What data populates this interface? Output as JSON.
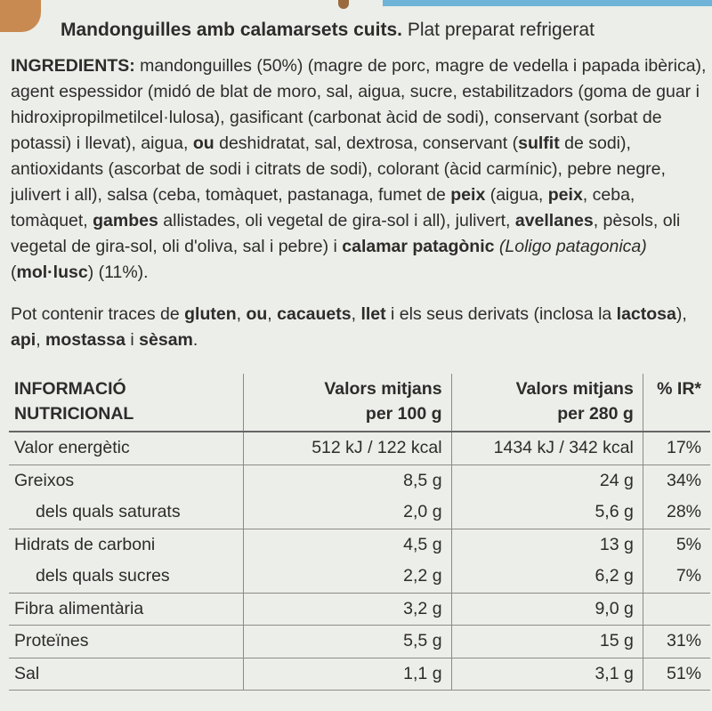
{
  "title": {
    "product": "Mandonguilles amb calamarsets cuits.",
    "subtitle": "Plat preparat refrigerat"
  },
  "ingredients": {
    "label": "INGREDIENTS:",
    "segments": [
      {
        "t": " mandonguilles (50%) (magre de porc, magre de vedella i papada ibèrica), agent espessidor (midó de blat de moro, sal, aigua, sucre, estabilitzadors (goma de guar i hidroxipropilmetilcel·lulosa), gasificant (carbonat àcid de sodi), conservant (sorbat de potassi) i llevat), aigua, ",
        "b": false
      },
      {
        "t": "ou",
        "b": true
      },
      {
        "t": " deshidratat, sal, dextrosa, conservant (",
        "b": false
      },
      {
        "t": "sulfit",
        "b": true
      },
      {
        "t": " de sodi), antioxidants (ascorbat de sodi i citrats de sodi), colorant (àcid carmínic), pebre negre, julivert i all), salsa (ceba, tomàquet, pastanaga, fumet de ",
        "b": false
      },
      {
        "t": "peix",
        "b": true
      },
      {
        "t": " (aigua, ",
        "b": false
      },
      {
        "t": "peix",
        "b": true
      },
      {
        "t": ", ceba, tomàquet, ",
        "b": false
      },
      {
        "t": "gambes",
        "b": true
      },
      {
        "t": " allistades, oli vegetal de gira-sol i all), julivert, ",
        "b": false
      },
      {
        "t": "avellanes",
        "b": true
      },
      {
        "t": ", pèsols, oli vegetal de gira-sol, oli d'oliva, sal i pebre) i ",
        "b": false
      },
      {
        "t": "calamar patagònic",
        "b": true
      },
      {
        "t": " ",
        "b": false
      },
      {
        "t": "(Loligo patagonica)",
        "b": false,
        "i": true
      },
      {
        "t": " (",
        "b": false
      },
      {
        "t": "mol·lusc",
        "b": true
      },
      {
        "t": ") (11%).",
        "b": false
      }
    ]
  },
  "allergens": {
    "segments": [
      {
        "t": "Pot contenir traces de ",
        "b": false
      },
      {
        "t": "gluten",
        "b": true
      },
      {
        "t": ", ",
        "b": false
      },
      {
        "t": "ou",
        "b": true
      },
      {
        "t": ", ",
        "b": false
      },
      {
        "t": "cacauets",
        "b": true
      },
      {
        "t": ", ",
        "b": false
      },
      {
        "t": "llet",
        "b": true
      },
      {
        "t": " i els seus derivats (inclosa la ",
        "b": false
      },
      {
        "t": "lactosa",
        "b": true
      },
      {
        "t": "), ",
        "b": false
      },
      {
        "t": "api",
        "b": true
      },
      {
        "t": ", ",
        "b": false
      },
      {
        "t": "mostassa",
        "b": true
      },
      {
        "t": " i ",
        "b": false
      },
      {
        "t": "sèsam",
        "b": true
      },
      {
        "t": ".",
        "b": false
      }
    ]
  },
  "nutrition": {
    "header": {
      "col0": [
        "INFORMACIÓ",
        "NUTRICIONAL"
      ],
      "col1": [
        "Valors mitjans",
        "per 100 g"
      ],
      "col2": [
        "Valors mitjans",
        "per 280 g"
      ],
      "col3": [
        "% IR*"
      ]
    },
    "rows": [
      {
        "name": "Valor energètic",
        "per100": "512 kJ / 122 kcal",
        "per280": "1434 kJ / 342 kcal",
        "ir": "17%",
        "indent": false,
        "sep": false
      },
      {
        "name": "Greixos",
        "per100": "8,5 g",
        "per280": "24 g",
        "ir": "34%",
        "indent": false,
        "sep": true
      },
      {
        "name": "dels quals saturats",
        "per100": "2,0 g",
        "per280": "5,6 g",
        "ir": "28%",
        "indent": true,
        "sep": false
      },
      {
        "name": "Hidrats de carboni",
        "per100": "4,5 g",
        "per280": "13 g",
        "ir": "5%",
        "indent": false,
        "sep": true
      },
      {
        "name": "dels quals sucres",
        "per100": "2,2 g",
        "per280": "6,2 g",
        "ir": "7%",
        "indent": true,
        "sep": false
      },
      {
        "name": "Fibra alimentària",
        "per100": "3,2 g",
        "per280": "9,0 g",
        "ir": "",
        "indent": false,
        "sep": true
      },
      {
        "name": "Proteïnes",
        "per100": "5,5 g",
        "per280": "15 g",
        "ir": "31%",
        "indent": false,
        "sep": true
      },
      {
        "name": "Sal",
        "per100": "1,1 g",
        "per280": "3,1 g",
        "ir": "51%",
        "indent": false,
        "sep": true
      }
    ]
  }
}
